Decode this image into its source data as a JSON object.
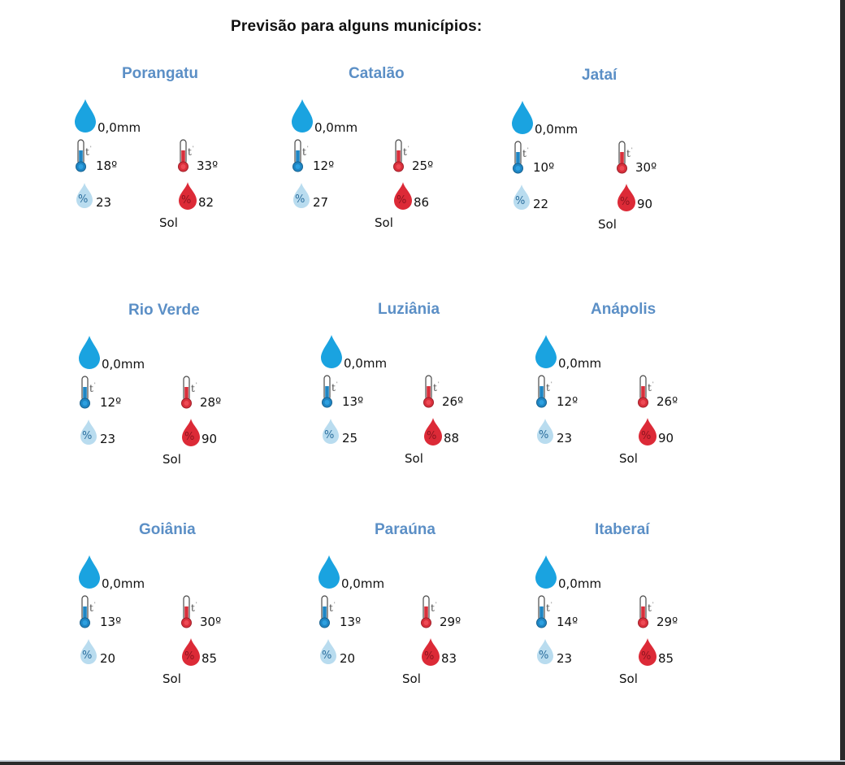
{
  "title": "Previsão para alguns municípios:",
  "colors": {
    "city_title": "#5b8fc6",
    "rain_drop": "#1aa3e0",
    "cold": "#1f86c4",
    "hot": "#d9303c",
    "humidity_low": "#b9dcef",
    "humidity_high": "#dc2a37"
  },
  "icons": {
    "rain": "rain-drop-icon",
    "temp_min": "thermometer-cold-icon",
    "temp_max": "thermometer-hot-icon",
    "humidity_min": "humidity-low-icon",
    "humidity_max": "humidity-high-icon"
  },
  "cities": [
    {
      "name": "Porangatu",
      "rain": "0,0mm",
      "temp_min": "18º",
      "temp_max": "33º",
      "humidity_min": "23",
      "humidity_max": "82",
      "condition": "Sol"
    },
    {
      "name": "Catalão",
      "rain": "0,0mm",
      "temp_min": "12º",
      "temp_max": "25º",
      "humidity_min": "27",
      "humidity_max": "86",
      "condition": "Sol"
    },
    {
      "name": "Jataí",
      "rain": "0,0mm",
      "temp_min": "10º",
      "temp_max": "30º",
      "humidity_min": "22",
      "humidity_max": "90",
      "condition": "Sol"
    },
    {
      "name": "Rio Verde",
      "rain": "0,0mm",
      "temp_min": "12º",
      "temp_max": "28º",
      "humidity_min": "23",
      "humidity_max": "90",
      "condition": "Sol"
    },
    {
      "name": "Luziânia",
      "rain": "0,0mm",
      "temp_min": "13º",
      "temp_max": "26º",
      "humidity_min": "25",
      "humidity_max": "88",
      "condition": "Sol"
    },
    {
      "name": "Anápolis",
      "rain": "0,0mm",
      "temp_min": "12º",
      "temp_max": "26º",
      "humidity_min": "23",
      "humidity_max": "90",
      "condition": "Sol"
    },
    {
      "name": "Goiânia",
      "rain": "0,0mm",
      "temp_min": "13º",
      "temp_max": "30º",
      "humidity_min": "20",
      "humidity_max": "85",
      "condition": "Sol"
    },
    {
      "name": "Paraúna",
      "rain": "0,0mm",
      "temp_min": "13º",
      "temp_max": "29º",
      "humidity_min": "20",
      "humidity_max": "83",
      "condition": "Sol"
    },
    {
      "name": "Itaberaí",
      "rain": "0,0mm",
      "temp_min": "14º",
      "temp_max": "29º",
      "humidity_min": "23",
      "humidity_max": "85",
      "condition": "Sol"
    }
  ]
}
